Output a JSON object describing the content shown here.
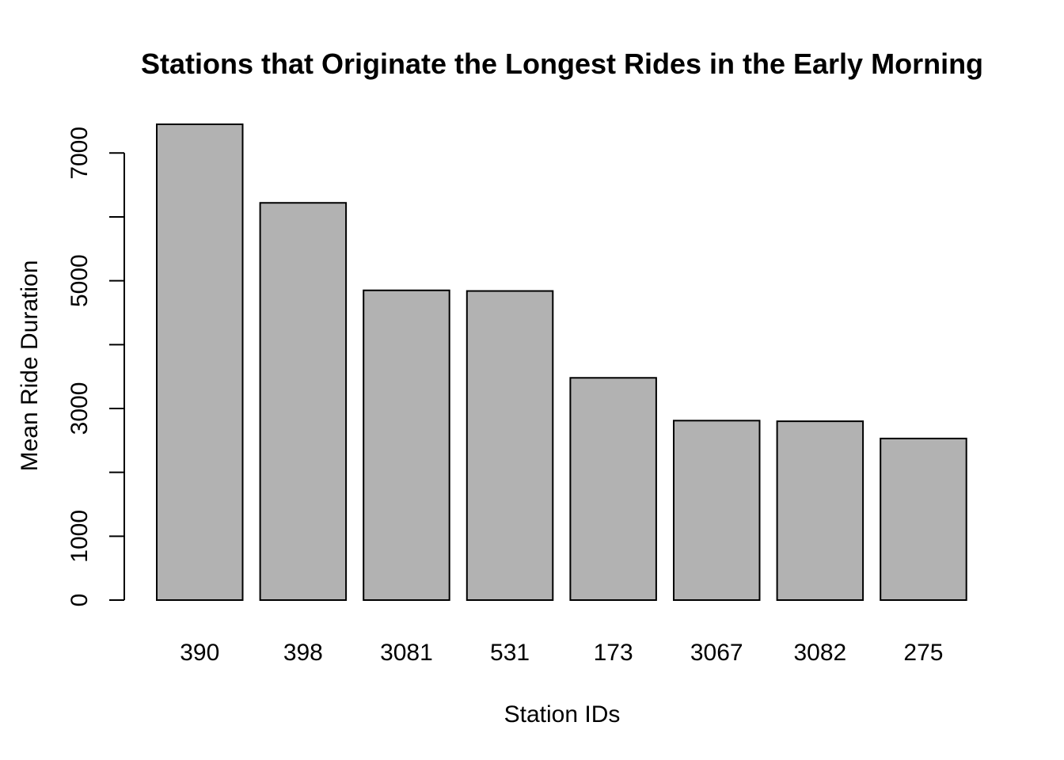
{
  "chart_data": {
    "type": "bar",
    "title": "Stations that Originate the Longest Rides in the Early Morning",
    "xlabel": "Station IDs",
    "ylabel": "Mean Ride Duration",
    "categories": [
      "390",
      "398",
      "3081",
      "531",
      "173",
      "3067",
      "3082",
      "275"
    ],
    "values": [
      7450,
      6220,
      4850,
      4840,
      3480,
      2810,
      2800,
      2530
    ],
    "ylim": [
      0,
      7450
    ],
    "yticks": [
      0,
      1000,
      2000,
      3000,
      4000,
      5000,
      6000,
      7000
    ],
    "ytick_labels": [
      "0",
      "1000",
      "",
      "3000",
      "",
      "5000",
      "",
      "7000"
    ],
    "bar_color": "#b2b2b2",
    "grid": false,
    "legend": "none"
  }
}
